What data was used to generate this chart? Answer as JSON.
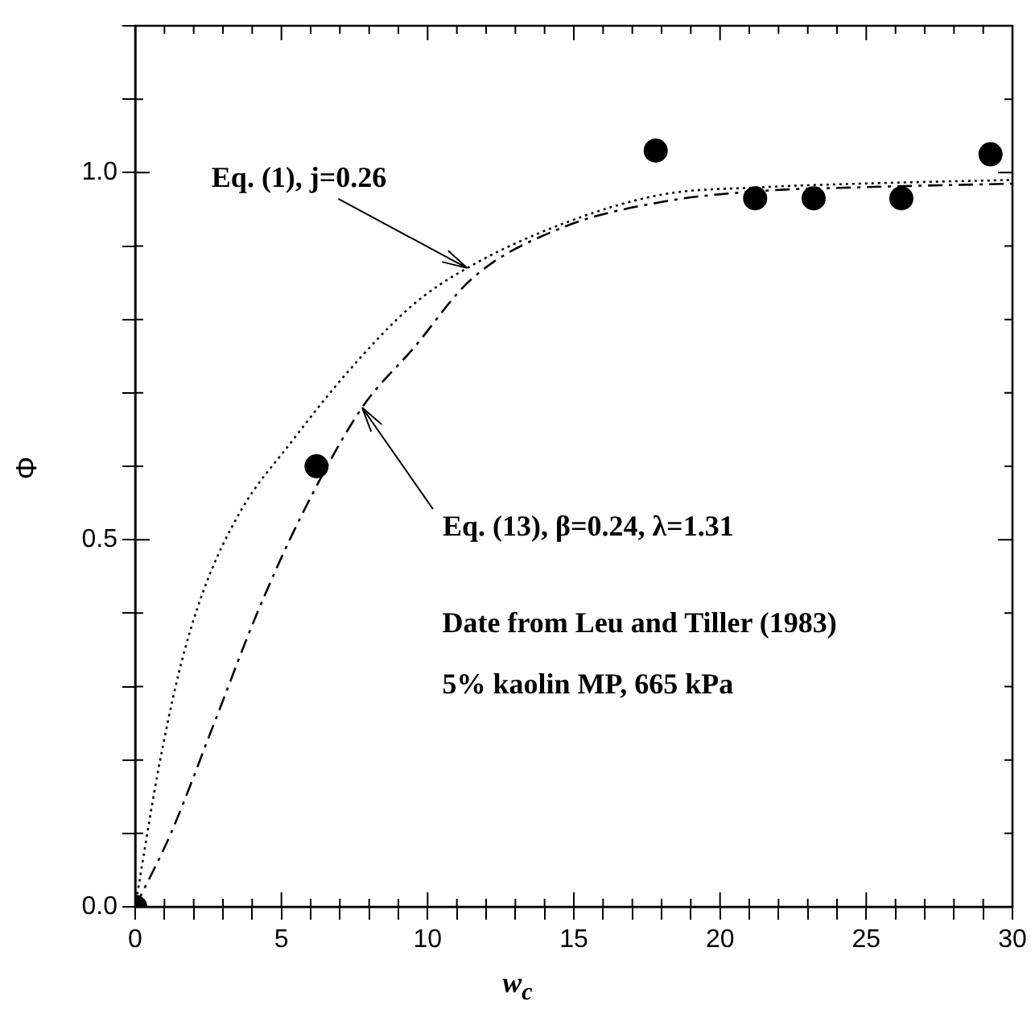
{
  "chart_data": {
    "type": "scatter",
    "xlabel": "w$_{c}$",
    "ylabel": "Φ",
    "xlim": [
      0,
      30
    ],
    "xticks": [
      0,
      {
        "value": 1,
        "label": null
      },
      {
        "value": 2,
        "label": null
      },
      {
        "value": 3,
        "label": null
      },
      {
        "value": 4,
        "label": null
      },
      5,
      {
        "value": 6,
        "label": null
      },
      {
        "value": 7,
        "label": null
      },
      {
        "value": 8,
        "label": null
      },
      {
        "value": 9,
        "label": null
      },
      10,
      {
        "value": 11,
        "label": null
      },
      {
        "value": 12,
        "label": null
      },
      {
        "value": 13,
        "label": null
      },
      {
        "value": 14,
        "label": null
      },
      15,
      {
        "value": 16,
        "label": null
      },
      {
        "value": 17,
        "label": null
      },
      {
        "value": 18,
        "label": null
      },
      {
        "value": 19,
        "label": null
      },
      20,
      {
        "value": 21,
        "label": null
      },
      {
        "value": 22,
        "label": null
      },
      {
        "value": 23,
        "label": null
      },
      {
        "value": 24,
        "label": null
      },
      25,
      {
        "value": 26,
        "label": null
      },
      {
        "value": 27,
        "label": null
      },
      {
        "value": 28,
        "label": null
      },
      {
        "value": 29,
        "label": null
      },
      30
    ],
    "ylim": [
      0,
      1.2
    ],
    "yticks": [
      {
        "value": 0,
        "label": "0.0"
      },
      {
        "value": 0.1,
        "label": null
      },
      {
        "value": 0.2,
        "label": null
      },
      {
        "value": 0.3,
        "label": null
      },
      {
        "value": 0.4,
        "label": null
      },
      {
        "value": 0.5,
        "label": "0.5"
      },
      {
        "value": 0.6,
        "label": null
      },
      {
        "value": 0.7,
        "label": null
      },
      {
        "value": 0.8,
        "label": null
      },
      {
        "value": 0.9,
        "label": null
      },
      {
        "value": 1,
        "label": "1.0"
      },
      {
        "value": 1.1,
        "label": null
      },
      {
        "value": 1.2,
        "label": null
      }
    ],
    "grid": false,
    "legend": false,
    "series": [
      {
        "type": "scatter",
        "color": "#000000",
        "marker": "circle",
        "x": [
          0,
          6.2,
          17.8,
          21.2,
          23.2,
          26.2,
          29.25
        ],
        "values": [
          0,
          0.6,
          1.03,
          0.965,
          0.965,
          0.965,
          1.025
        ]
      },
      {
        "type": "line",
        "color": "#000000",
        "line_style": "dotted",
        "marker": "none",
        "x": [
          0,
          0.76,
          1.5,
          2.33,
          3.62,
          5.28,
          7.3,
          9.5,
          11.35,
          14.6,
          18,
          21.4,
          24.8,
          30
        ],
        "values": [
          0,
          0.18,
          0.32,
          0.43,
          0.54,
          0.63,
          0.73,
          0.82,
          0.87,
          0.93,
          0.97,
          0.98,
          0.985,
          0.99
        ]
      },
      {
        "type": "line",
        "color": "#000000",
        "line_style": "dashed",
        "marker": "none",
        "x": [
          0,
          1.22,
          2.7,
          4.17,
          5.65,
          7.76,
          9.5,
          11.5,
          14.6,
          18,
          21.4,
          24.8,
          30
        ],
        "values": [
          0,
          0.1,
          0.25,
          0.4,
          0.53,
          0.68,
          0.76,
          0.855,
          0.925,
          0.96,
          0.975,
          0.98,
          0.985
        ]
      }
    ],
    "annotations": [
      {
        "text": "Eq. (1), j=0.26",
        "x": 11.35,
        "y": 0.87
      },
      {
        "text": "Eq. (13), β=0.24, λ=1.31",
        "x": 7.76,
        "y": 0.68
      },
      "Date from Leu and Tiller (1983)",
      "5% kaolin MP, 665 kPa"
    ]
  }
}
